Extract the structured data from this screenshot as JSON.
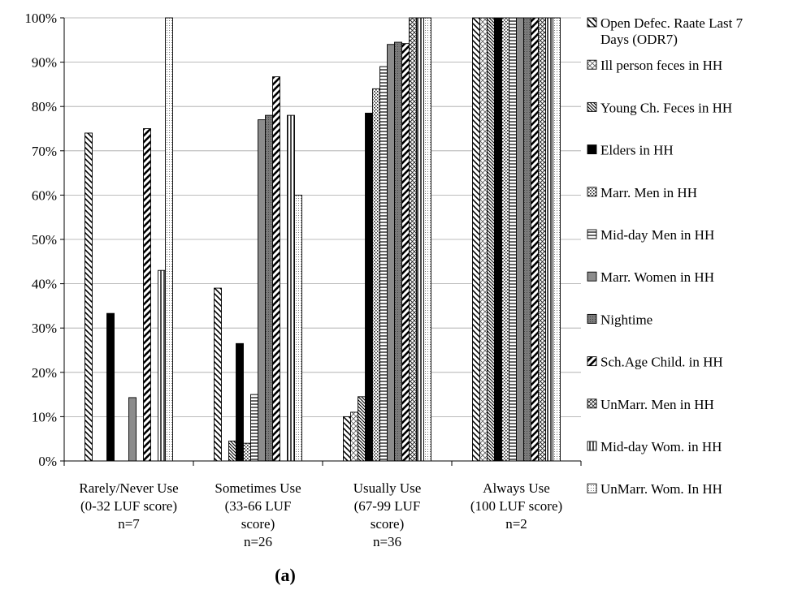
{
  "chart_data": {
    "type": "bar",
    "caption": "(a)",
    "y_axis": {
      "min": 0,
      "max": 100,
      "step": 10,
      "format": "percent",
      "ticks": [
        "0%",
        "10%",
        "20%",
        "30%",
        "40%",
        "50%",
        "60%",
        "70%",
        "80%",
        "90%",
        "100%"
      ],
      "grid": true
    },
    "categories": [
      [
        "Rarely/Never Use",
        "(0-32 LUF score)",
        "n=7"
      ],
      [
        "Sometimes Use",
        "(33-66 LUF",
        "score)",
        "n=26"
      ],
      [
        "Usually Use",
        "(67-99 LUF",
        "score)",
        "n=36"
      ],
      [
        "Always Use",
        "(100 LUF score)",
        "n=2"
      ]
    ],
    "legend_position": "right",
    "series": [
      {
        "name": [
          "Open Defec. Raate Last 7",
          "Days (ODR7)"
        ],
        "pattern": "diag-back",
        "values": [
          74,
          39,
          10,
          100
        ]
      },
      {
        "name": [
          "Ill person feces in HH"
        ],
        "pattern": "diamond-light",
        "values": [
          0,
          0,
          11,
          100
        ]
      },
      {
        "name": [
          "Young Ch. Feces in HH"
        ],
        "pattern": "diag-back-dense",
        "values": [
          0,
          4.5,
          14.5,
          100
        ]
      },
      {
        "name": [
          "Elders in HH"
        ],
        "pattern": "solid-black",
        "values": [
          33.3,
          26.5,
          78.5,
          100
        ]
      },
      {
        "name": [
          "Marr. Men in HH"
        ],
        "pattern": "dotted-check",
        "values": [
          0,
          4,
          84,
          100
        ]
      },
      {
        "name": [
          "Mid-day Men in HH"
        ],
        "pattern": "horizontal",
        "values": [
          0,
          15,
          89,
          100
        ]
      },
      {
        "name": [
          "Marr. Women in HH"
        ],
        "pattern": "solid-gray",
        "values": [
          14.3,
          77,
          94,
          100
        ]
      },
      {
        "name": [
          "Nightime"
        ],
        "pattern": "dark-gray-dots",
        "values": [
          0,
          78,
          94.5,
          100
        ]
      },
      {
        "name": [
          "Sch.Age Child. in HH"
        ],
        "pattern": "diag-forward-bold",
        "values": [
          75,
          86.7,
          94.2,
          100
        ]
      },
      {
        "name": [
          "UnMarr. Men in HH"
        ],
        "pattern": "diamond-check",
        "values": [
          0,
          0,
          100,
          100
        ]
      },
      {
        "name": [
          "Mid-day Wom. in HH"
        ],
        "pattern": "vertical",
        "values": [
          43,
          78,
          100,
          100
        ]
      },
      {
        "name": [
          "UnMarr. Wom. In HH"
        ],
        "pattern": "fine-dots",
        "values": [
          100,
          60,
          100,
          100
        ]
      }
    ]
  }
}
